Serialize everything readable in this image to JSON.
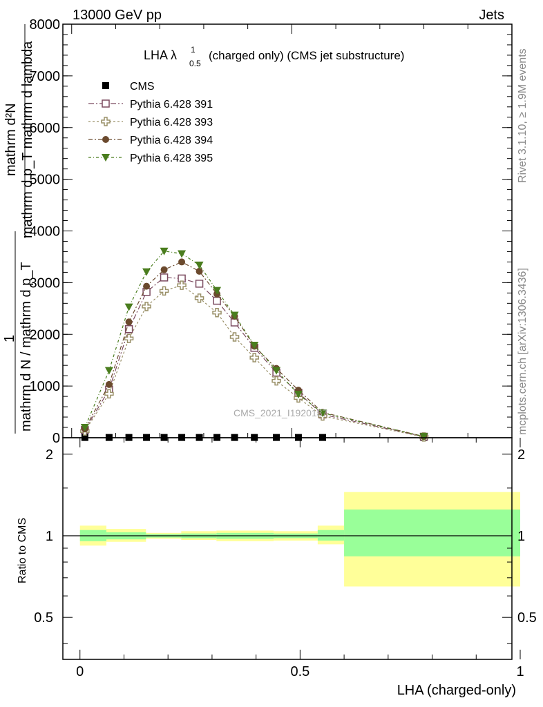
{
  "header": {
    "left": "13000 GeV pp",
    "right": "Jets"
  },
  "side_text": {
    "rivet": "Rivet 3.1.10, ≥ 1.9M events",
    "mcplots": "mcplots.cern.ch [arXiv:1306.3436]"
  },
  "watermark": "CMS_2021_I1920187",
  "chart_data": [
    {
      "type": "line",
      "title_main": "LHA λ",
      "title_sup": "1",
      "title_sub": "0.5",
      "title_rest": "(charged only) (CMS jet substructure)",
      "ylabel_top": "mathrm d²N",
      "ylabel_bottom": "mathrm d p_T mathrm d lambda",
      "ylabel_over": "1",
      "ylabel_under": "mathrm d N / mathrm d p_T",
      "xlim": [
        0,
        1
      ],
      "ylim": [
        0,
        8000
      ],
      "yticks": [
        "0",
        "1000",
        "2000",
        "3000",
        "4000",
        "5000",
        "6000",
        "7000",
        "8000"
      ],
      "ytick_values": [
        0,
        1000,
        2000,
        3000,
        4000,
        5000,
        6000,
        7000,
        8000
      ],
      "x": [
        0.03,
        0.085,
        0.13,
        0.17,
        0.21,
        0.25,
        0.29,
        0.33,
        0.37,
        0.415,
        0.465,
        0.515,
        0.57,
        0.8
      ],
      "series": [
        {
          "name": "CMS",
          "color": "#000000",
          "marker": "filled-square",
          "x": [
            0.03,
            0.085,
            0.13,
            0.17,
            0.21,
            0.25,
            0.29,
            0.33,
            0.37,
            0.415,
            0.465,
            0.515,
            0.57,
            0.8
          ],
          "values": [
            5,
            5,
            5,
            5,
            5,
            5,
            5,
            5,
            5,
            5,
            5,
            5,
            5,
            5
          ]
        },
        {
          "name": "Pythia 6.428 391",
          "color": "#7b4a5f",
          "marker": "open-square",
          "values": [
            150,
            930,
            2100,
            2820,
            3100,
            3080,
            2980,
            2650,
            2230,
            1740,
            1260,
            870,
            450,
            20
          ]
        },
        {
          "name": "Pythia 6.428 393",
          "color": "#9a9068",
          "marker": "open-cross",
          "values": [
            130,
            850,
            1920,
            2540,
            2840,
            2950,
            2700,
            2420,
            1950,
            1550,
            1100,
            770,
            420,
            15
          ]
        },
        {
          "name": "Pythia 6.428 394",
          "color": "#6b4a2e",
          "marker": "filled-circle",
          "values": [
            170,
            1030,
            2240,
            2930,
            3250,
            3400,
            3220,
            2780,
            2350,
            1770,
            1340,
            920,
            490,
            25
          ]
        },
        {
          "name": "Pythia 6.428 395",
          "color": "#4a7d1e",
          "marker": "filled-triangle-down",
          "values": [
            200,
            1300,
            2530,
            3210,
            3610,
            3560,
            3340,
            2850,
            2370,
            1790,
            1300,
            840,
            480,
            25
          ]
        }
      ]
    },
    {
      "type": "area",
      "ylabel": "Ratio to CMS",
      "xlabel": "LHA (charged-only)",
      "xlim": [
        -0.02,
        1.0
      ],
      "ylim": [
        0.35,
        2.3
      ],
      "log_y": true,
      "yticks": [
        "0.5",
        "1",
        "2"
      ],
      "ytick_values": [
        0.5,
        1,
        2
      ],
      "xticks": [
        "0",
        "0.5",
        "1"
      ],
      "xtick_values": [
        0,
        0.5,
        1
      ],
      "bins": [
        {
          "lo": 0.0,
          "hi": 0.06,
          "inner": [
            0.955,
            1.05
          ],
          "outer": [
            0.92,
            1.09
          ]
        },
        {
          "lo": 0.06,
          "hi": 0.15,
          "inner": [
            0.97,
            1.03
          ],
          "outer": [
            0.95,
            1.06
          ]
        },
        {
          "lo": 0.15,
          "hi": 0.23,
          "inner": [
            0.985,
            1.015
          ],
          "outer": [
            0.975,
            1.025
          ]
        },
        {
          "lo": 0.23,
          "hi": 0.31,
          "inner": [
            0.98,
            1.02
          ],
          "outer": [
            0.965,
            1.04
          ]
        },
        {
          "lo": 0.31,
          "hi": 0.44,
          "inner": [
            0.975,
            1.025
          ],
          "outer": [
            0.955,
            1.045
          ]
        },
        {
          "lo": 0.44,
          "hi": 0.54,
          "inner": [
            0.98,
            1.02
          ],
          "outer": [
            0.96,
            1.04
          ]
        },
        {
          "lo": 0.54,
          "hi": 0.6,
          "inner": [
            0.96,
            1.05
          ],
          "outer": [
            0.93,
            1.09
          ]
        },
        {
          "lo": 0.6,
          "hi": 1.0,
          "inner": [
            0.84,
            1.25
          ],
          "outer": [
            0.65,
            1.45
          ]
        }
      ],
      "colors": {
        "inner": "#99ff99",
        "outer": "#ffff99"
      }
    }
  ]
}
